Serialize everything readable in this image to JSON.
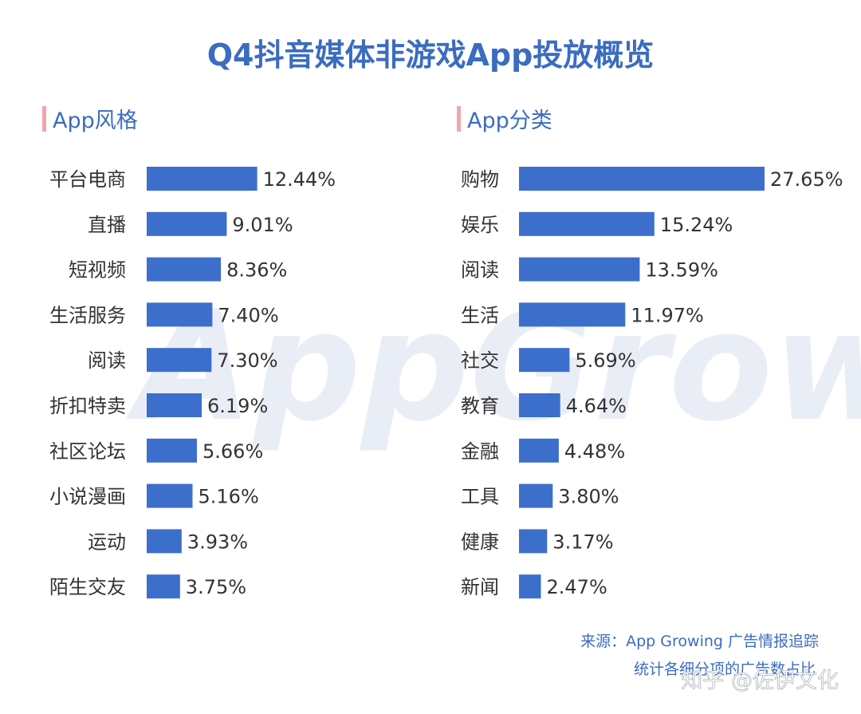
{
  "title": "Q4抖音媒体非游戏App投放概览",
  "watermark": {
    "text": "AppGrowing"
  },
  "colors": {
    "title": "#3b6cc0",
    "bar": "#3c6ecb",
    "section_marker": "#f4a4ad",
    "watermark": "#e9eef6"
  },
  "chart_data": [
    {
      "type": "bar",
      "orientation": "horizontal",
      "title": "App风格",
      "xlabel": "",
      "ylabel": "",
      "xlim": [
        0,
        27.65
      ],
      "categories": [
        "平台电商",
        "直播",
        "短视频",
        "生活服务",
        "阅读",
        "折扣特卖",
        "社区论坛",
        "小说漫画",
        "运动",
        "陌生交友"
      ],
      "values": [
        12.44,
        9.01,
        8.36,
        7.4,
        7.3,
        6.19,
        5.66,
        5.16,
        3.93,
        3.75
      ],
      "labels": [
        "12.44%",
        "9.01%",
        "8.36%",
        "7.40%",
        "7.30%",
        "6.19%",
        "5.66%",
        "5.16%",
        "3.93%",
        "3.75%"
      ]
    },
    {
      "type": "bar",
      "orientation": "horizontal",
      "title": "App分类",
      "xlabel": "",
      "ylabel": "",
      "xlim": [
        0,
        27.65
      ],
      "categories": [
        "购物",
        "娱乐",
        "阅读",
        "生活",
        "社交",
        "教育",
        "金融",
        "工具",
        "健康",
        "新闻"
      ],
      "values": [
        27.65,
        15.24,
        13.59,
        11.97,
        5.69,
        4.64,
        4.48,
        3.8,
        3.17,
        2.47
      ],
      "labels": [
        "27.65%",
        "15.24%",
        "13.59%",
        "11.97%",
        "5.69%",
        "4.64%",
        "4.48%",
        "3.80%",
        "3.17%",
        "2.47%"
      ]
    }
  ],
  "source": {
    "line1": "来源：App Growing 广告情报追踪",
    "line2": "统计各细分项的广告数占比"
  },
  "credit": "知乎 @佐伊文化"
}
